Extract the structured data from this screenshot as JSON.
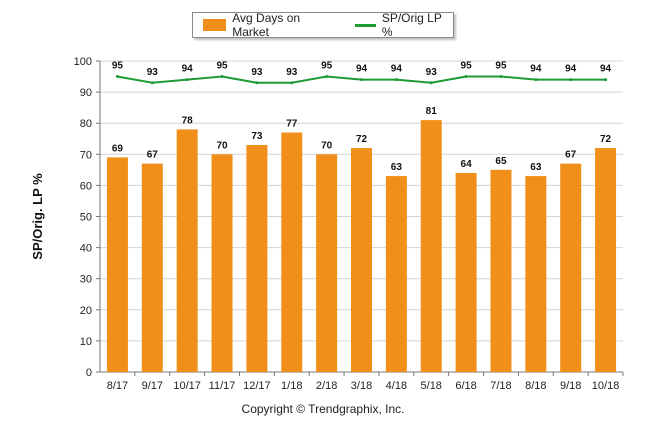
{
  "chart_data": {
    "type": "bar",
    "ylabel": "SP/Orig. LP %",
    "xlabel": "",
    "ylim": [
      0,
      100
    ],
    "yticks": [
      0,
      10,
      20,
      30,
      40,
      50,
      60,
      70,
      80,
      90,
      100
    ],
    "grid": true,
    "legend_position": "top-center",
    "categories": [
      "8/17",
      "9/17",
      "10/17",
      "11/17",
      "12/17",
      "1/18",
      "2/18",
      "3/18",
      "4/18",
      "5/18",
      "6/18",
      "7/18",
      "8/18",
      "9/18",
      "10/18"
    ],
    "series": [
      {
        "name": "Avg Days on Market",
        "type": "bar",
        "color": "#f0901a",
        "values": [
          69,
          67,
          78,
          70,
          73,
          77,
          70,
          72,
          63,
          81,
          64,
          65,
          63,
          67,
          72
        ]
      },
      {
        "name": "SP/Orig LP %",
        "type": "line",
        "color": "#1f9b35",
        "values": [
          95,
          93,
          94,
          95,
          93,
          93,
          95,
          94,
          94,
          93,
          95,
          95,
          94,
          94,
          94
        ]
      }
    ]
  },
  "footer": {
    "copyright": "Copyright © Trendgraphix, Inc."
  }
}
